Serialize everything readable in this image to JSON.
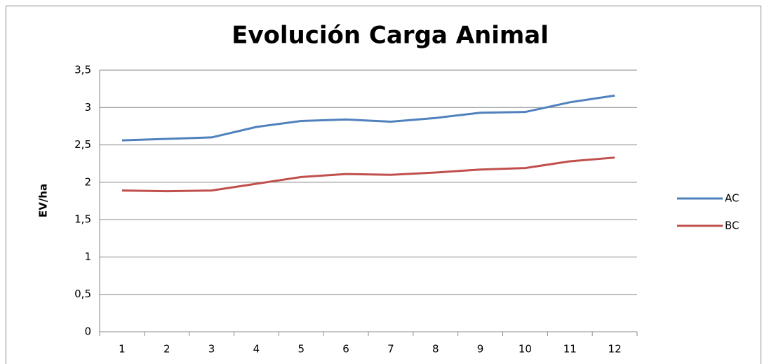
{
  "chart_data": {
    "type": "line",
    "title": "Evolución Carga Animal",
    "y_label": "EV/ha",
    "categories": [
      "1",
      "2",
      "3",
      "4",
      "5",
      "6",
      "7",
      "8",
      "9",
      "10",
      "11",
      "12"
    ],
    "series": [
      {
        "name": "AC",
        "color": "#4f81bd",
        "values": [
          2.56,
          2.58,
          2.6,
          2.74,
          2.82,
          2.84,
          2.81,
          2.86,
          2.93,
          2.94,
          3.07,
          3.16
        ]
      },
      {
        "name": "BC",
        "color": "#c0504d",
        "values": [
          1.89,
          1.88,
          1.89,
          1.98,
          2.07,
          2.11,
          2.1,
          2.13,
          2.17,
          2.19,
          2.28,
          2.33
        ]
      }
    ],
    "ylim": [
      0,
      3.5
    ],
    "yticks": [
      0,
      {
        "value": 0.5,
        "label": "0,5"
      },
      1,
      {
        "value": 1.5,
        "label": "1,5"
      },
      2,
      {
        "value": 2.5,
        "label": "2,5"
      },
      3,
      {
        "value": 3.5,
        "label": "3,5"
      }
    ],
    "grid": true,
    "legend": "right"
  }
}
